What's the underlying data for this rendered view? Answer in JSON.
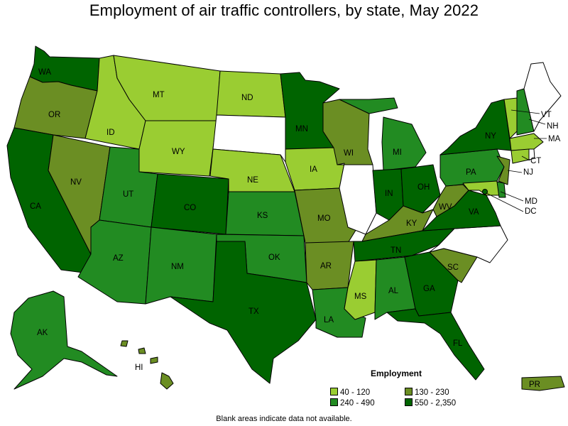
{
  "title": "Employment of air traffic controllers, by state, May 2022",
  "footnote": "Blank areas indicate data not available.",
  "colors": {
    "tier1": "#9acd32",
    "tier2": "#6b8e23",
    "tier3": "#228b22",
    "tier4": "#006400",
    "blank": "#ffffff",
    "border": "#000000"
  },
  "legend": {
    "title": "Employment",
    "items": [
      {
        "label": "40 - 120",
        "color": "#9acd32"
      },
      {
        "label": "130 - 230",
        "color": "#6b8e23"
      },
      {
        "label": "240 - 490",
        "color": "#228b22"
      },
      {
        "label": "550 - 2,350",
        "color": "#006400"
      }
    ]
  },
  "states": {
    "WA": {
      "label": "WA",
      "tier": 4
    },
    "OR": {
      "label": "OR",
      "tier": 2
    },
    "CA": {
      "label": "CA",
      "tier": 4
    },
    "NV": {
      "label": "NV",
      "tier": 2
    },
    "ID": {
      "label": "ID",
      "tier": 1
    },
    "MT": {
      "label": "MT",
      "tier": 1
    },
    "WY": {
      "label": "WY",
      "tier": 1
    },
    "UT": {
      "label": "UT",
      "tier": 3
    },
    "AZ": {
      "label": "AZ",
      "tier": 3
    },
    "CO": {
      "label": "CO",
      "tier": 4
    },
    "NM": {
      "label": "NM",
      "tier": 3
    },
    "ND": {
      "label": "ND",
      "tier": 1
    },
    "SD": {
      "label": "",
      "tier": 0
    },
    "NE": {
      "label": "NE",
      "tier": 1
    },
    "KS": {
      "label": "KS",
      "tier": 3
    },
    "OK": {
      "label": "OK",
      "tier": 3
    },
    "TX": {
      "label": "TX",
      "tier": 4
    },
    "MN": {
      "label": "MN",
      "tier": 4
    },
    "IA": {
      "label": "IA",
      "tier": 1
    },
    "MO": {
      "label": "MO",
      "tier": 2
    },
    "AR": {
      "label": "AR",
      "tier": 2
    },
    "LA": {
      "label": "LA",
      "tier": 3
    },
    "WI": {
      "label": "WI",
      "tier": 2
    },
    "IL": {
      "label": "",
      "tier": 0
    },
    "MI": {
      "label": "MI",
      "tier": 3
    },
    "IN": {
      "label": "IN",
      "tier": 4
    },
    "OH": {
      "label": "OH",
      "tier": 4
    },
    "KY": {
      "label": "KY",
      "tier": 2
    },
    "TN": {
      "label": "TN",
      "tier": 4
    },
    "MS": {
      "label": "MS",
      "tier": 1
    },
    "AL": {
      "label": "AL",
      "tier": 3
    },
    "GA": {
      "label": "GA",
      "tier": 4
    },
    "FL": {
      "label": "FL",
      "tier": 4
    },
    "SC": {
      "label": "SC",
      "tier": 2
    },
    "NC": {
      "label": "",
      "tier": 0
    },
    "VA": {
      "label": "VA",
      "tier": 4
    },
    "WV": {
      "label": "WV",
      "tier": 2
    },
    "PA": {
      "label": "PA",
      "tier": 3
    },
    "NY": {
      "label": "NY",
      "tier": 4
    },
    "ME": {
      "label": "",
      "tier": 0
    },
    "NH": {
      "label": "NH",
      "tier": 3
    },
    "VT": {
      "label": "VT",
      "tier": 1
    },
    "MA": {
      "label": "MA",
      "tier": 1
    },
    "CT": {
      "label": "CT",
      "tier": 1
    },
    "RI": {
      "label": "",
      "tier": 0
    },
    "NJ": {
      "label": "NJ",
      "tier": 2
    },
    "DE": {
      "label": "",
      "tier": 3
    },
    "MD": {
      "label": "MD",
      "tier": 1
    },
    "DC": {
      "label": "DC",
      "tier": 4
    },
    "AK": {
      "label": "AK",
      "tier": 3
    },
    "HI": {
      "label": "HI",
      "tier": 2
    },
    "PR": {
      "label": "PR",
      "tier": 2
    }
  }
}
